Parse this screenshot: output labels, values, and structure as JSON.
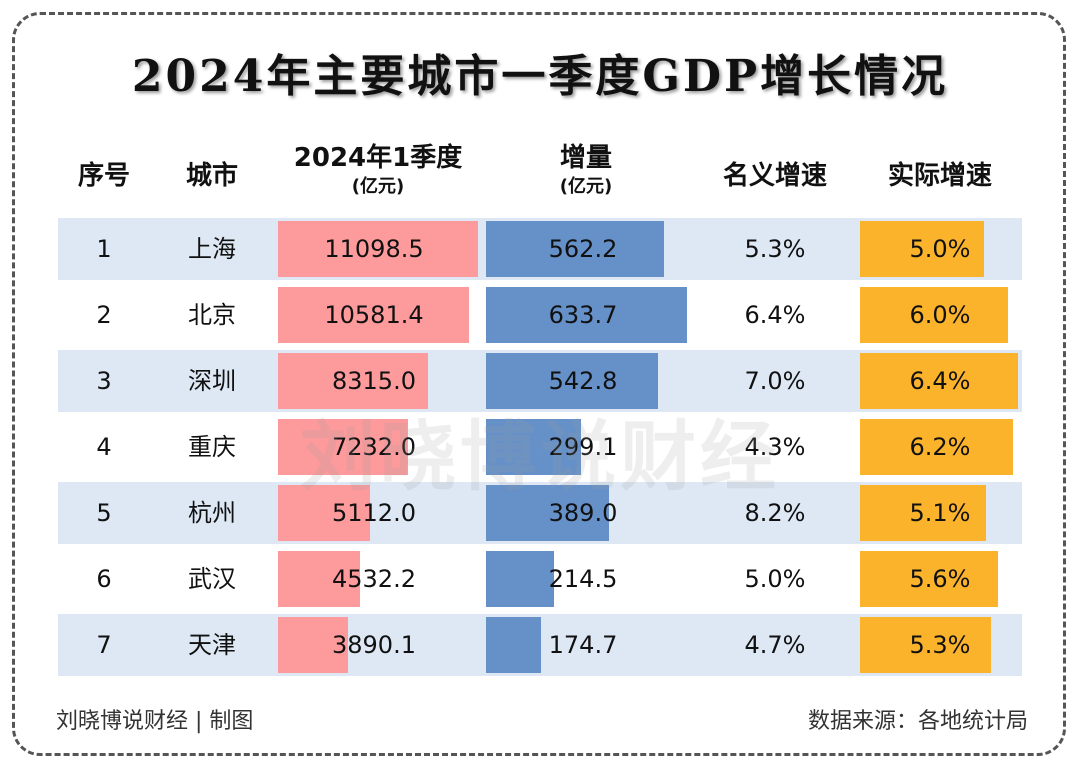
{
  "title": "2024年主要城市一季度GDP增长情况",
  "headers": {
    "index": "序号",
    "city": "城市",
    "gdp": "2024年1季度",
    "gdp_unit": "(亿元)",
    "increment": "增量",
    "increment_unit": "(亿元)",
    "nominal": "名义增速",
    "real": "实际增速"
  },
  "colors": {
    "gdp_bar": "#fd9a9c",
    "increment_bar": "#6590c8",
    "real_bar": "#fbb32c",
    "stripe": "#dde8f4"
  },
  "chart_data": {
    "type": "table",
    "title": "2024年主要城市一季度GDP增长情况",
    "rows": [
      {
        "index": "1",
        "city": "上海",
        "gdp": "11098.5",
        "increment": "562.2",
        "nominal": "5.3%",
        "real": "5.0%"
      },
      {
        "index": "2",
        "city": "北京",
        "gdp": "10581.4",
        "increment": "633.7",
        "nominal": "6.4%",
        "real": "6.0%"
      },
      {
        "index": "3",
        "city": "深圳",
        "gdp": "8315.0",
        "increment": "542.8",
        "nominal": "7.0%",
        "real": "6.4%"
      },
      {
        "index": "4",
        "city": "重庆",
        "gdp": "7232.0",
        "increment": "299.1",
        "nominal": "4.3%",
        "real": "6.2%"
      },
      {
        "index": "5",
        "city": "杭州",
        "gdp": "5112.0",
        "increment": "389.0",
        "nominal": "8.2%",
        "real": "5.1%"
      },
      {
        "index": "6",
        "city": "武汉",
        "gdp": "4532.2",
        "increment": "214.5",
        "nominal": "5.0%",
        "real": "5.6%"
      },
      {
        "index": "7",
        "city": "天津",
        "gdp": "3890.1",
        "increment": "174.7",
        "nominal": "4.7%",
        "real": "5.3%"
      }
    ]
  },
  "watermark": "刘晓博说财经",
  "footer": {
    "left": "刘晓博说财经 | 制图",
    "right": "数据来源：各地统计局"
  }
}
